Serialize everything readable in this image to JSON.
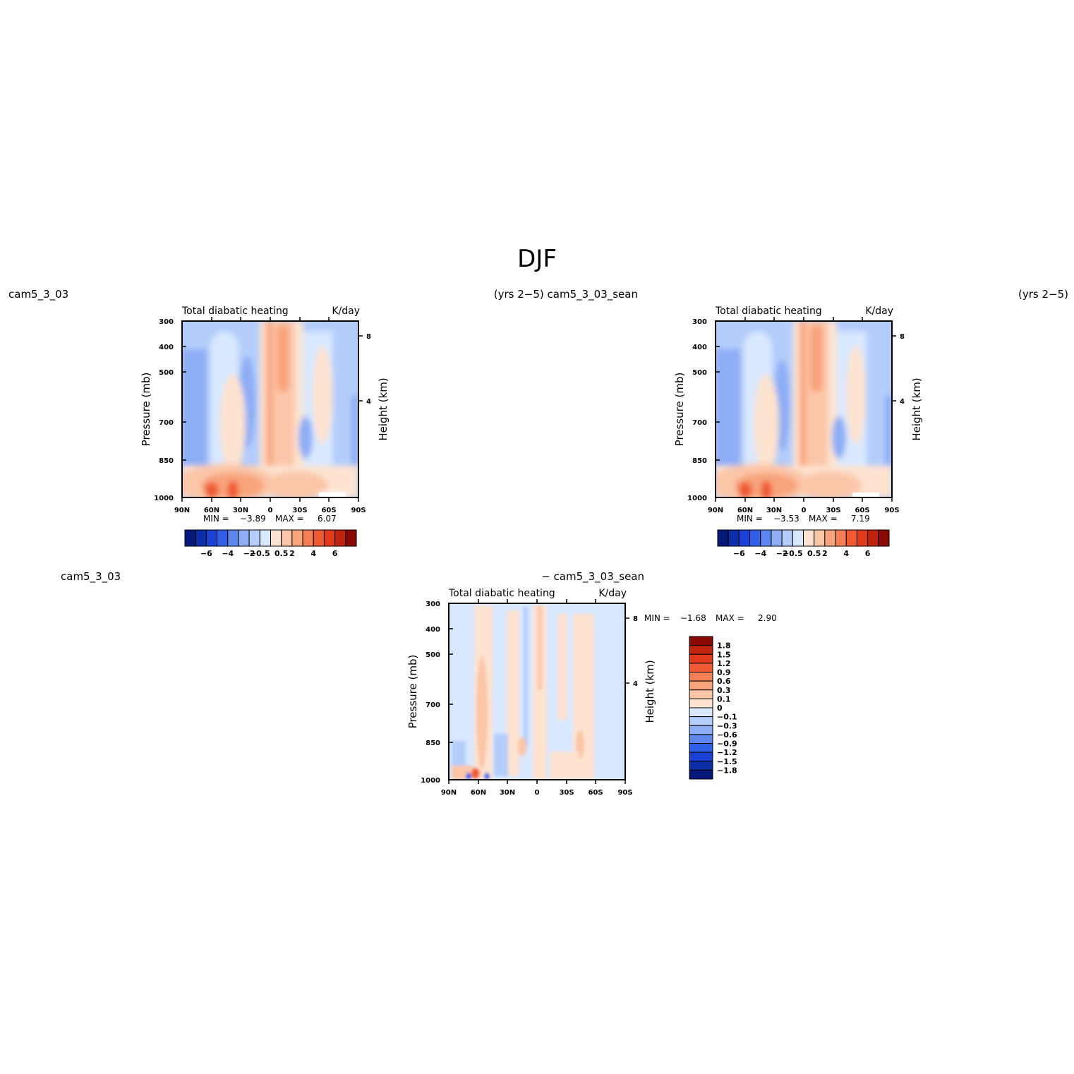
{
  "figure": {
    "title": "DJF",
    "left_header": "cam5_3_03",
    "center_header": "(yrs 2−5) cam5_3_03_sean",
    "right_header": "(yrs 2−5)",
    "bottom_left_label": "cam5_3_03",
    "bottom_center_label": "− cam5_3_03_sean"
  },
  "colors": {
    "pos": [
      "#fde3d0",
      "#fbc6a8",
      "#f8a47d",
      "#f47f55",
      "#ef5a32",
      "#e0391b",
      "#c2230f",
      "#8b0a05"
    ],
    "neg": [
      "#d8e8ff",
      "#b4cdfb",
      "#8dadf5",
      "#5d87ee",
      "#3160e8",
      "#1a42d6",
      "#0c2ea7",
      "#06197a"
    ]
  },
  "chart_data": [
    {
      "type": "heatmap",
      "panel": "top-left",
      "title": "Total diabatic heating",
      "units": "K/day",
      "ylabel": "Pressure (mb)",
      "ylabel_right": "Height (km)",
      "x_ticks": [
        "90N",
        "60N",
        "30N",
        "0",
        "30S",
        "60S",
        "90S"
      ],
      "x_range": [
        90,
        -90
      ],
      "y_ticks": [
        300,
        400,
        500,
        700,
        850,
        1000
      ],
      "y_range": [
        1000,
        300
      ],
      "height_ticks": [
        8,
        4
      ],
      "min_label": "MIN =",
      "min_value": "−3.89",
      "max_label": "MAX =",
      "max_value": "6.07",
      "colorbar_labels": [
        "−6",
        "−4",
        "−2",
        "−0.5",
        "0.5",
        "2",
        "4",
        "6"
      ],
      "min": -3.89,
      "max": 6.07
    },
    {
      "type": "heatmap",
      "panel": "top-right",
      "title": "Total diabatic heating",
      "units": "K/day",
      "ylabel": "Pressure (mb)",
      "ylabel_right": "Height (km)",
      "x_ticks": [
        "90N",
        "60N",
        "30N",
        "0",
        "30S",
        "60S",
        "90S"
      ],
      "x_range": [
        90,
        -90
      ],
      "y_ticks": [
        300,
        400,
        500,
        700,
        850,
        1000
      ],
      "y_range": [
        1000,
        300
      ],
      "height_ticks": [
        8,
        4
      ],
      "min_label": "MIN =",
      "min_value": "−3.53",
      "max_label": "MAX =",
      "max_value": "7.19",
      "colorbar_labels": [
        "−6",
        "−4",
        "−2",
        "−0.5",
        "0.5",
        "2",
        "4",
        "6"
      ],
      "min": -3.53,
      "max": 7.19
    },
    {
      "type": "heatmap",
      "panel": "bottom-center",
      "title": "Total diabatic heating",
      "units": "K/day",
      "ylabel": "Pressure (mb)",
      "ylabel_right": "Height (km)",
      "x_ticks": [
        "90N",
        "60N",
        "30N",
        "0",
        "30S",
        "60S",
        "90S"
      ],
      "x_range": [
        90,
        -90
      ],
      "y_ticks": [
        300,
        400,
        500,
        700,
        850,
        1000
      ],
      "y_range": [
        1000,
        300
      ],
      "height_ticks": [
        8,
        4
      ],
      "min_label": "MIN =",
      "min_value": "−1.68",
      "max_label": "MAX =",
      "max_value": "2.90",
      "colorbar_labels": [
        "1.8",
        "1.5",
        "1.2",
        "0.9",
        "0.6",
        "0.3",
        "0.1",
        "0",
        "−0.1",
        "−0.3",
        "−0.6",
        "−0.9",
        "−1.2",
        "−1.5",
        "−1.8"
      ],
      "min": -1.68,
      "max": 2.9
    }
  ]
}
